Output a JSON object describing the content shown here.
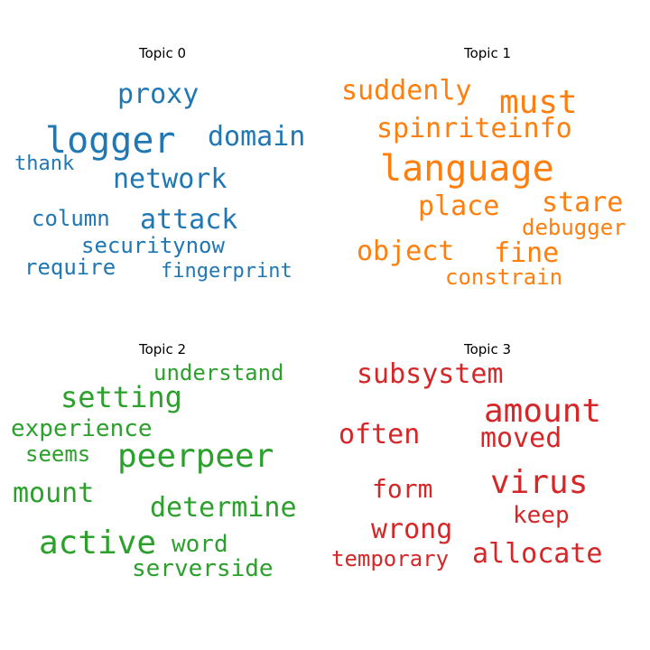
{
  "colors": [
    "#1f77b4",
    "#ff7f0e",
    "#2ca02c",
    "#d62728"
  ],
  "chart_data": [
    {
      "type": "wordcloud",
      "title": "Topic 0",
      "color": "#1f77b4",
      "words": [
        "logger",
        "proxy",
        "domain",
        "network",
        "thank",
        "attack",
        "column",
        "securitynow",
        "require",
        "fingerprint"
      ]
    },
    {
      "type": "wordcloud",
      "title": "Topic 1",
      "color": "#ff7f0e",
      "words": [
        "suddenly",
        "must",
        "spinriteinfo",
        "language",
        "place",
        "stare",
        "debugger",
        "object",
        "fine",
        "constrain"
      ]
    },
    {
      "type": "wordcloud",
      "title": "Topic 2",
      "color": "#2ca02c",
      "words": [
        "understand",
        "setting",
        "experience",
        "seems",
        "peerpeer",
        "mount",
        "determine",
        "active",
        "word",
        "serverside"
      ]
    },
    {
      "type": "wordcloud",
      "title": "Topic 3",
      "color": "#d62728",
      "words": [
        "subsystem",
        "amount",
        "often",
        "moved",
        "virus",
        "form",
        "keep",
        "wrong",
        "allocate",
        "temporary"
      ]
    }
  ]
}
